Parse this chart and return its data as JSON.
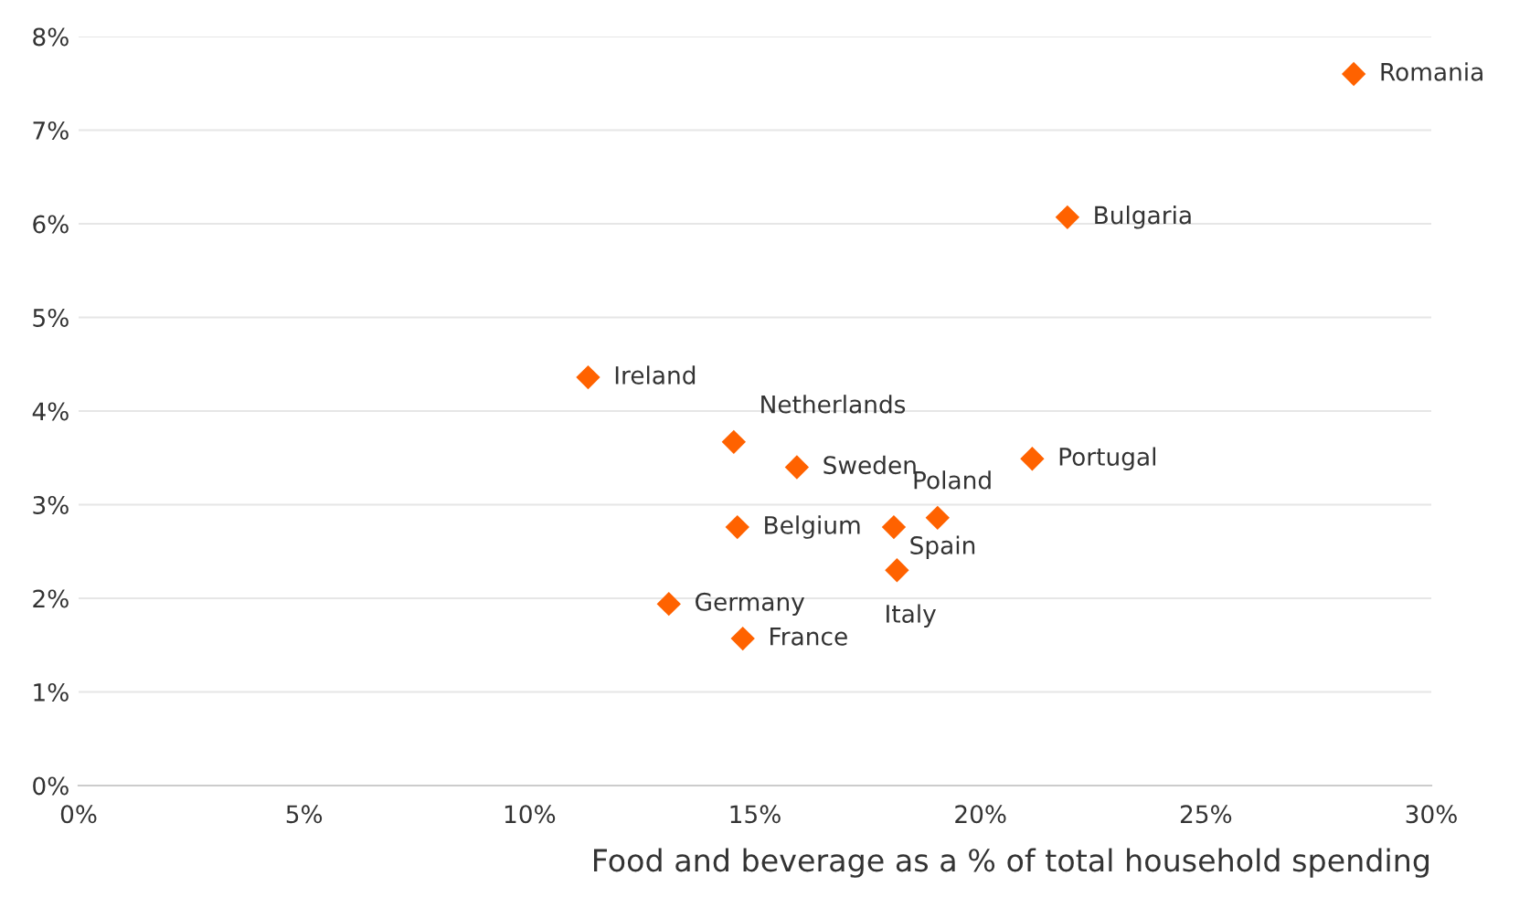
{
  "chart_data": {
    "type": "scatter",
    "xlabel": "Food and beverage as a % of total household spending",
    "x": [
      28.28,
      21.93,
      11.3,
      14.53,
      15.93,
      21.15,
      19.05,
      14.61,
      18.08,
      18.15,
      13.09,
      14.73
    ],
    "series": [
      {
        "color": "#ff6200",
        "values": [
          7.6,
          6.07,
          4.36,
          3.67,
          3.4,
          3.49,
          2.86,
          2.76,
          2.76,
          2.3,
          1.94,
          1.57
        ]
      }
    ],
    "annotations": [
      {
        "text": "Romania",
        "x": 28.28,
        "y": 7.6
      },
      {
        "text": "Bulgaria",
        "x": 21.93,
        "y": 6.07
      },
      {
        "text": "Ireland",
        "x": 11.3,
        "y": 4.36
      },
      {
        "text": "Netherlands",
        "x": 14.53,
        "y": 3.67
      },
      {
        "text": "Sweden",
        "x": 15.93,
        "y": 3.4
      },
      {
        "text": "Portugal",
        "x": 21.15,
        "y": 3.49
      },
      {
        "text": "Poland",
        "x": 19.05,
        "y": 2.86
      },
      {
        "text": "Belgium",
        "x": 14.61,
        "y": 2.76
      },
      {
        "text": "Spain",
        "x": 18.08,
        "y": 2.76
      },
      {
        "text": "Italy",
        "x": 18.15,
        "y": 2.3
      },
      {
        "text": "Germany",
        "x": 13.09,
        "y": 1.94
      },
      {
        "text": "France",
        "x": 14.73,
        "y": 1.57
      }
    ],
    "xlim": [
      0,
      30
    ],
    "ylim": [
      0,
      8
    ],
    "xticks": [
      {
        "value": 0,
        "label": "0%"
      },
      {
        "value": 5,
        "label": "5%"
      },
      {
        "value": 10,
        "label": "10%"
      },
      {
        "value": 15,
        "label": "15%"
      },
      {
        "value": 20,
        "label": "20%"
      },
      {
        "value": 25,
        "label": "25%"
      },
      {
        "value": 30,
        "label": "30%"
      }
    ],
    "yticks": [
      {
        "value": 0,
        "label": "0%"
      },
      {
        "value": 1,
        "label": "1%"
      },
      {
        "value": 2,
        "label": "2%"
      },
      {
        "value": 3,
        "label": "3%"
      },
      {
        "value": 4,
        "label": "4%"
      },
      {
        "value": 5,
        "label": "5%"
      },
      {
        "value": 6,
        "label": "6%"
      },
      {
        "value": 7,
        "label": "7%"
      },
      {
        "value": 8,
        "label": "8%"
      }
    ],
    "grid": "y",
    "marker": "diamond"
  }
}
